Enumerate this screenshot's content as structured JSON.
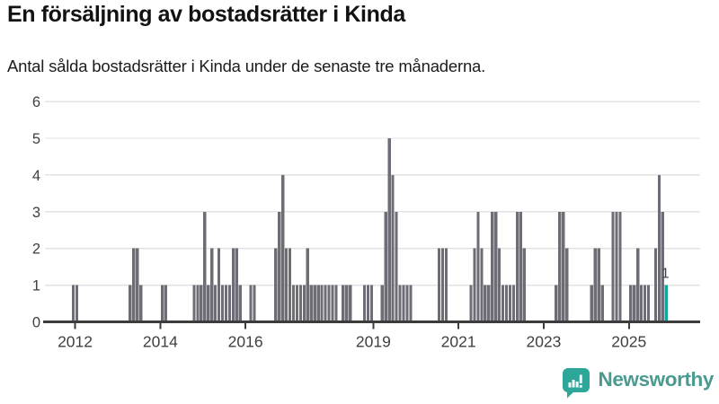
{
  "header": {
    "title": "En försäljning av bostadsrätter i Kinda",
    "subtitle": "Antal sålda bostadsrätter i Kinda under de senaste tre månaderna."
  },
  "chart_data": {
    "type": "bar",
    "title": "En försäljning av bostadsrätter i Kinda",
    "subtitle": "Antal sålda bostadsrätter i Kinda under de senaste tre månaderna.",
    "ylim": [
      0,
      6
    ],
    "yticks": [
      0,
      1,
      2,
      3,
      4,
      5,
      6
    ],
    "xticks": [
      2012,
      2014,
      2016,
      2019,
      2021,
      2023,
      2025
    ],
    "grid": "horizontal",
    "bar_color": "#6e6d75",
    "highlight_color": "#0ea69d",
    "axis_color": "#3c3c3c",
    "gridline_color": "#e3e3e3",
    "label_color": "#3f3f3f",
    "x_domain_start": "2011-04",
    "x_domain_end": "2026-09",
    "values_by_year": {
      "2011": [
        0,
        0,
        0,
        0,
        0,
        0,
        0,
        0,
        0,
        0,
        0,
        1
      ],
      "2012": [
        1,
        0,
        0,
        0,
        0,
        0,
        0,
        0,
        0,
        0,
        0,
        0
      ],
      "2013": [
        0,
        0,
        0,
        1,
        2,
        2,
        1,
        0,
        0,
        0,
        0,
        0
      ],
      "2014": [
        1,
        1,
        0,
        0,
        0,
        0,
        0,
        0,
        0,
        1,
        1,
        1
      ],
      "2015": [
        3,
        1,
        2,
        1,
        2,
        1,
        1,
        1,
        2,
        2,
        1,
        0
      ],
      "2016": [
        0,
        1,
        1,
        0,
        0,
        0,
        0,
        0,
        2,
        3,
        4,
        2
      ],
      "2017": [
        2,
        1,
        1,
        1,
        1,
        2,
        1,
        1,
        1,
        1,
        1,
        1
      ],
      "2018": [
        1,
        1,
        0,
        1,
        1,
        1,
        0,
        0,
        0,
        1,
        1,
        1
      ],
      "2019": [
        0,
        0,
        1,
        3,
        5,
        4,
        3,
        1,
        1,
        1,
        1,
        0
      ],
      "2020": [
        0,
        0,
        0,
        0,
        0,
        0,
        2,
        2,
        2,
        0,
        0,
        0
      ],
      "2021": [
        0,
        0,
        0,
        1,
        2,
        3,
        2,
        1,
        1,
        3,
        3,
        2
      ],
      "2022": [
        1,
        1,
        1,
        1,
        3,
        3,
        2,
        0,
        0,
        0,
        0,
        0
      ],
      "2023": [
        0,
        0,
        0,
        1,
        3,
        3,
        2,
        0,
        0,
        0,
        0,
        0
      ],
      "2024": [
        0,
        1,
        2,
        2,
        1,
        0,
        0,
        3,
        3,
        3,
        0,
        0
      ],
      "2025": [
        1,
        1,
        2,
        1,
        1,
        1,
        0,
        2,
        4,
        3,
        1
      ]
    },
    "highlight_month": "2025-11",
    "annotation": {
      "text": "1",
      "month": "2025-11"
    }
  },
  "footer": {
    "brand": "Newsworthy",
    "logo_icon": "newsworthy-speech-bubble-bar-chart-icon",
    "brand_text_color": "#4a9a90",
    "icon_color": "#2ea79b"
  }
}
